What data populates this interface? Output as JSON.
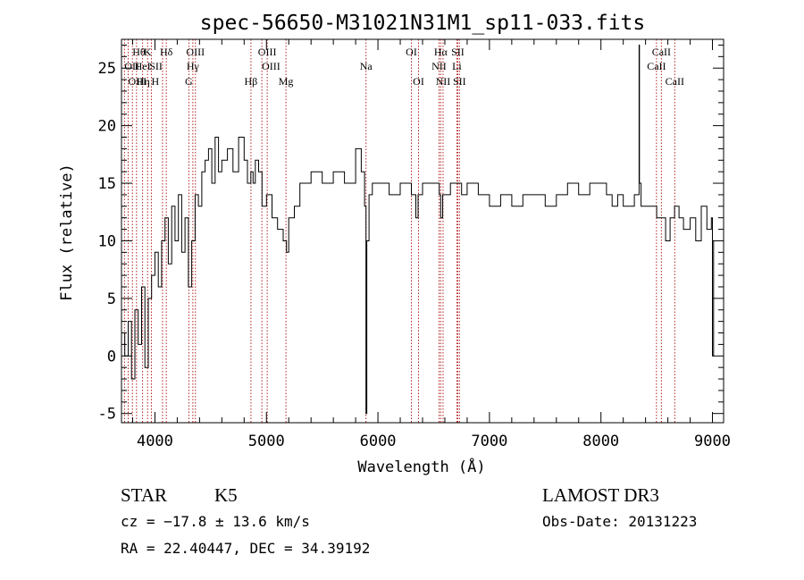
{
  "chart_data": {
    "type": "line",
    "title": "spec-56650-M31021N31M1_sp11-033.fits",
    "xlabel": "Wavelength (Å)",
    "ylabel": "Flux (relative)",
    "xlim": [
      3700,
      9100
    ],
    "ylim": [
      -5.8,
      27.5
    ],
    "xticks": [
      4000,
      5000,
      6000,
      7000,
      8000,
      9000
    ],
    "yticks": [
      -5,
      0,
      5,
      10,
      15,
      20,
      25
    ],
    "grid": false,
    "series": [
      {
        "x": [
          3700,
          3730,
          3760,
          3790,
          3820,
          3850,
          3880,
          3910,
          3940,
          3970,
          4000,
          4030,
          4060,
          4090,
          4120,
          4150,
          4180,
          4210,
          4240,
          4270,
          4300,
          4330,
          4360,
          4390,
          4420,
          4450,
          4480,
          4510,
          4540,
          4570,
          4600,
          4650,
          4700,
          4750,
          4800,
          4830,
          4860,
          4880,
          4900,
          4930,
          4960,
          5000,
          5050,
          5100,
          5150,
          5180,
          5200,
          5250,
          5300,
          5400,
          5500,
          5600,
          5700,
          5800,
          5850,
          5880,
          5893,
          5900,
          5920,
          5950,
          6000,
          6100,
          6200,
          6300,
          6340,
          6360,
          6400,
          6500,
          6550,
          6563,
          6580,
          6650,
          6700,
          6750,
          6800,
          6900,
          7000,
          7100,
          7200,
          7300,
          7400,
          7500,
          7600,
          7700,
          7800,
          7900,
          8000,
          8050,
          8100,
          8150,
          8200,
          8250,
          8300,
          8340,
          8342,
          8345,
          8360,
          8400,
          8450,
          8500,
          8540,
          8580,
          8620,
          8660,
          8700,
          8740,
          8800,
          8850,
          8900,
          8950,
          8990,
          9000,
          9010
        ],
        "y": [
          2,
          0,
          3,
          -2,
          4,
          1,
          6,
          -1,
          5,
          7,
          9,
          6,
          10,
          12,
          8,
          13,
          10,
          14,
          9,
          12,
          6,
          10,
          14,
          13,
          16,
          17,
          18,
          15,
          19,
          16,
          17,
          18,
          16,
          19,
          17,
          15,
          16,
          15,
          17,
          16,
          13,
          14,
          12,
          11,
          10,
          9,
          12,
          13,
          15,
          16,
          15,
          16,
          15,
          18,
          16,
          13,
          -5,
          10,
          14,
          15,
          15,
          14,
          15,
          14,
          12,
          14,
          15,
          15,
          14,
          12,
          14,
          15,
          15,
          14,
          15,
          14,
          13,
          14,
          13,
          14,
          14,
          13,
          14,
          15,
          14,
          15,
          15,
          14,
          13,
          14,
          13,
          13,
          14,
          14,
          27,
          15,
          13,
          13,
          13,
          12,
          12,
          10,
          12,
          13,
          12,
          11,
          12,
          10,
          13,
          11,
          12,
          0,
          10
        ]
      }
    ],
    "lines": [
      {
        "label": "Hθ",
        "x": 3798,
        "row": 1,
        "anchor": "start"
      },
      {
        "label": "OII",
        "x": 3727,
        "row": 2,
        "anchor": "start"
      },
      {
        "label": "OIII",
        "x": 3760,
        "row": 3,
        "anchor": "start"
      },
      {
        "label": "K",
        "x": 3934,
        "row": 1,
        "anchor": "middle"
      },
      {
        "label": "HeI",
        "x": 3889,
        "row": 2,
        "anchor": "middle"
      },
      {
        "label": "Hη",
        "x": 3835,
        "row": 3,
        "anchor": "start"
      },
      {
        "label": "SII",
        "x": 4068,
        "row": 2,
        "anchor": "end"
      },
      {
        "label": "H",
        "x": 3968,
        "row": 3,
        "anchor": "start"
      },
      {
        "label": "Hδ",
        "x": 4102,
        "row": 1,
        "anchor": "middle"
      },
      {
        "label": "OIII",
        "x": 4363,
        "row": 1,
        "anchor": "middle"
      },
      {
        "label": "Hγ",
        "x": 4340,
        "row": 2,
        "anchor": "middle"
      },
      {
        "label": "G",
        "x": 4304,
        "row": 3,
        "anchor": "middle"
      },
      {
        "label": "OIII",
        "x": 5007,
        "row": 1,
        "anchor": "middle"
      },
      {
        "label": "OIII",
        "x": 4959,
        "row": 2,
        "anchor": "start"
      },
      {
        "label": "Hβ",
        "x": 4861,
        "row": 3,
        "anchor": "middle"
      },
      {
        "label": "Mg",
        "x": 5175,
        "row": 3,
        "anchor": "middle"
      },
      {
        "label": "Na",
        "x": 5893,
        "row": 2,
        "anchor": "middle"
      },
      {
        "label": "OI",
        "x": 6300,
        "row": 1,
        "anchor": "middle"
      },
      {
        "label": "OI",
        "x": 6364,
        "row": 3,
        "anchor": "middle"
      },
      {
        "label": "Hα",
        "x": 6563,
        "row": 1,
        "anchor": "middle"
      },
      {
        "label": "SII",
        "x": 6716,
        "row": 1,
        "anchor": "middle"
      },
      {
        "label": "NII",
        "x": 6548,
        "row": 2,
        "anchor": "middle"
      },
      {
        "label": "Li",
        "x": 6708,
        "row": 2,
        "anchor": "middle"
      },
      {
        "label": "NII",
        "x": 6584,
        "row": 3,
        "anchor": "middle"
      },
      {
        "label": "SII",
        "x": 6731,
        "row": 3,
        "anchor": "middle"
      },
      {
        "label": "CaII",
        "x": 8542,
        "row": 1,
        "anchor": "middle"
      },
      {
        "label": "CaII",
        "x": 8498,
        "row": 2,
        "anchor": "middle"
      },
      {
        "label": "CaII",
        "x": 8662,
        "row": 3,
        "anchor": "middle"
      }
    ],
    "line_color": "#b22222"
  },
  "info": {
    "object_class": "STAR",
    "subclass": "K5",
    "survey": "LAMOST DR3",
    "cz": "cz = −17.8 ± 13.6 km/s",
    "obs_date": "Obs-Date: 20131223",
    "coords": "RA =  22.40447, DEC =  34.39192"
  }
}
